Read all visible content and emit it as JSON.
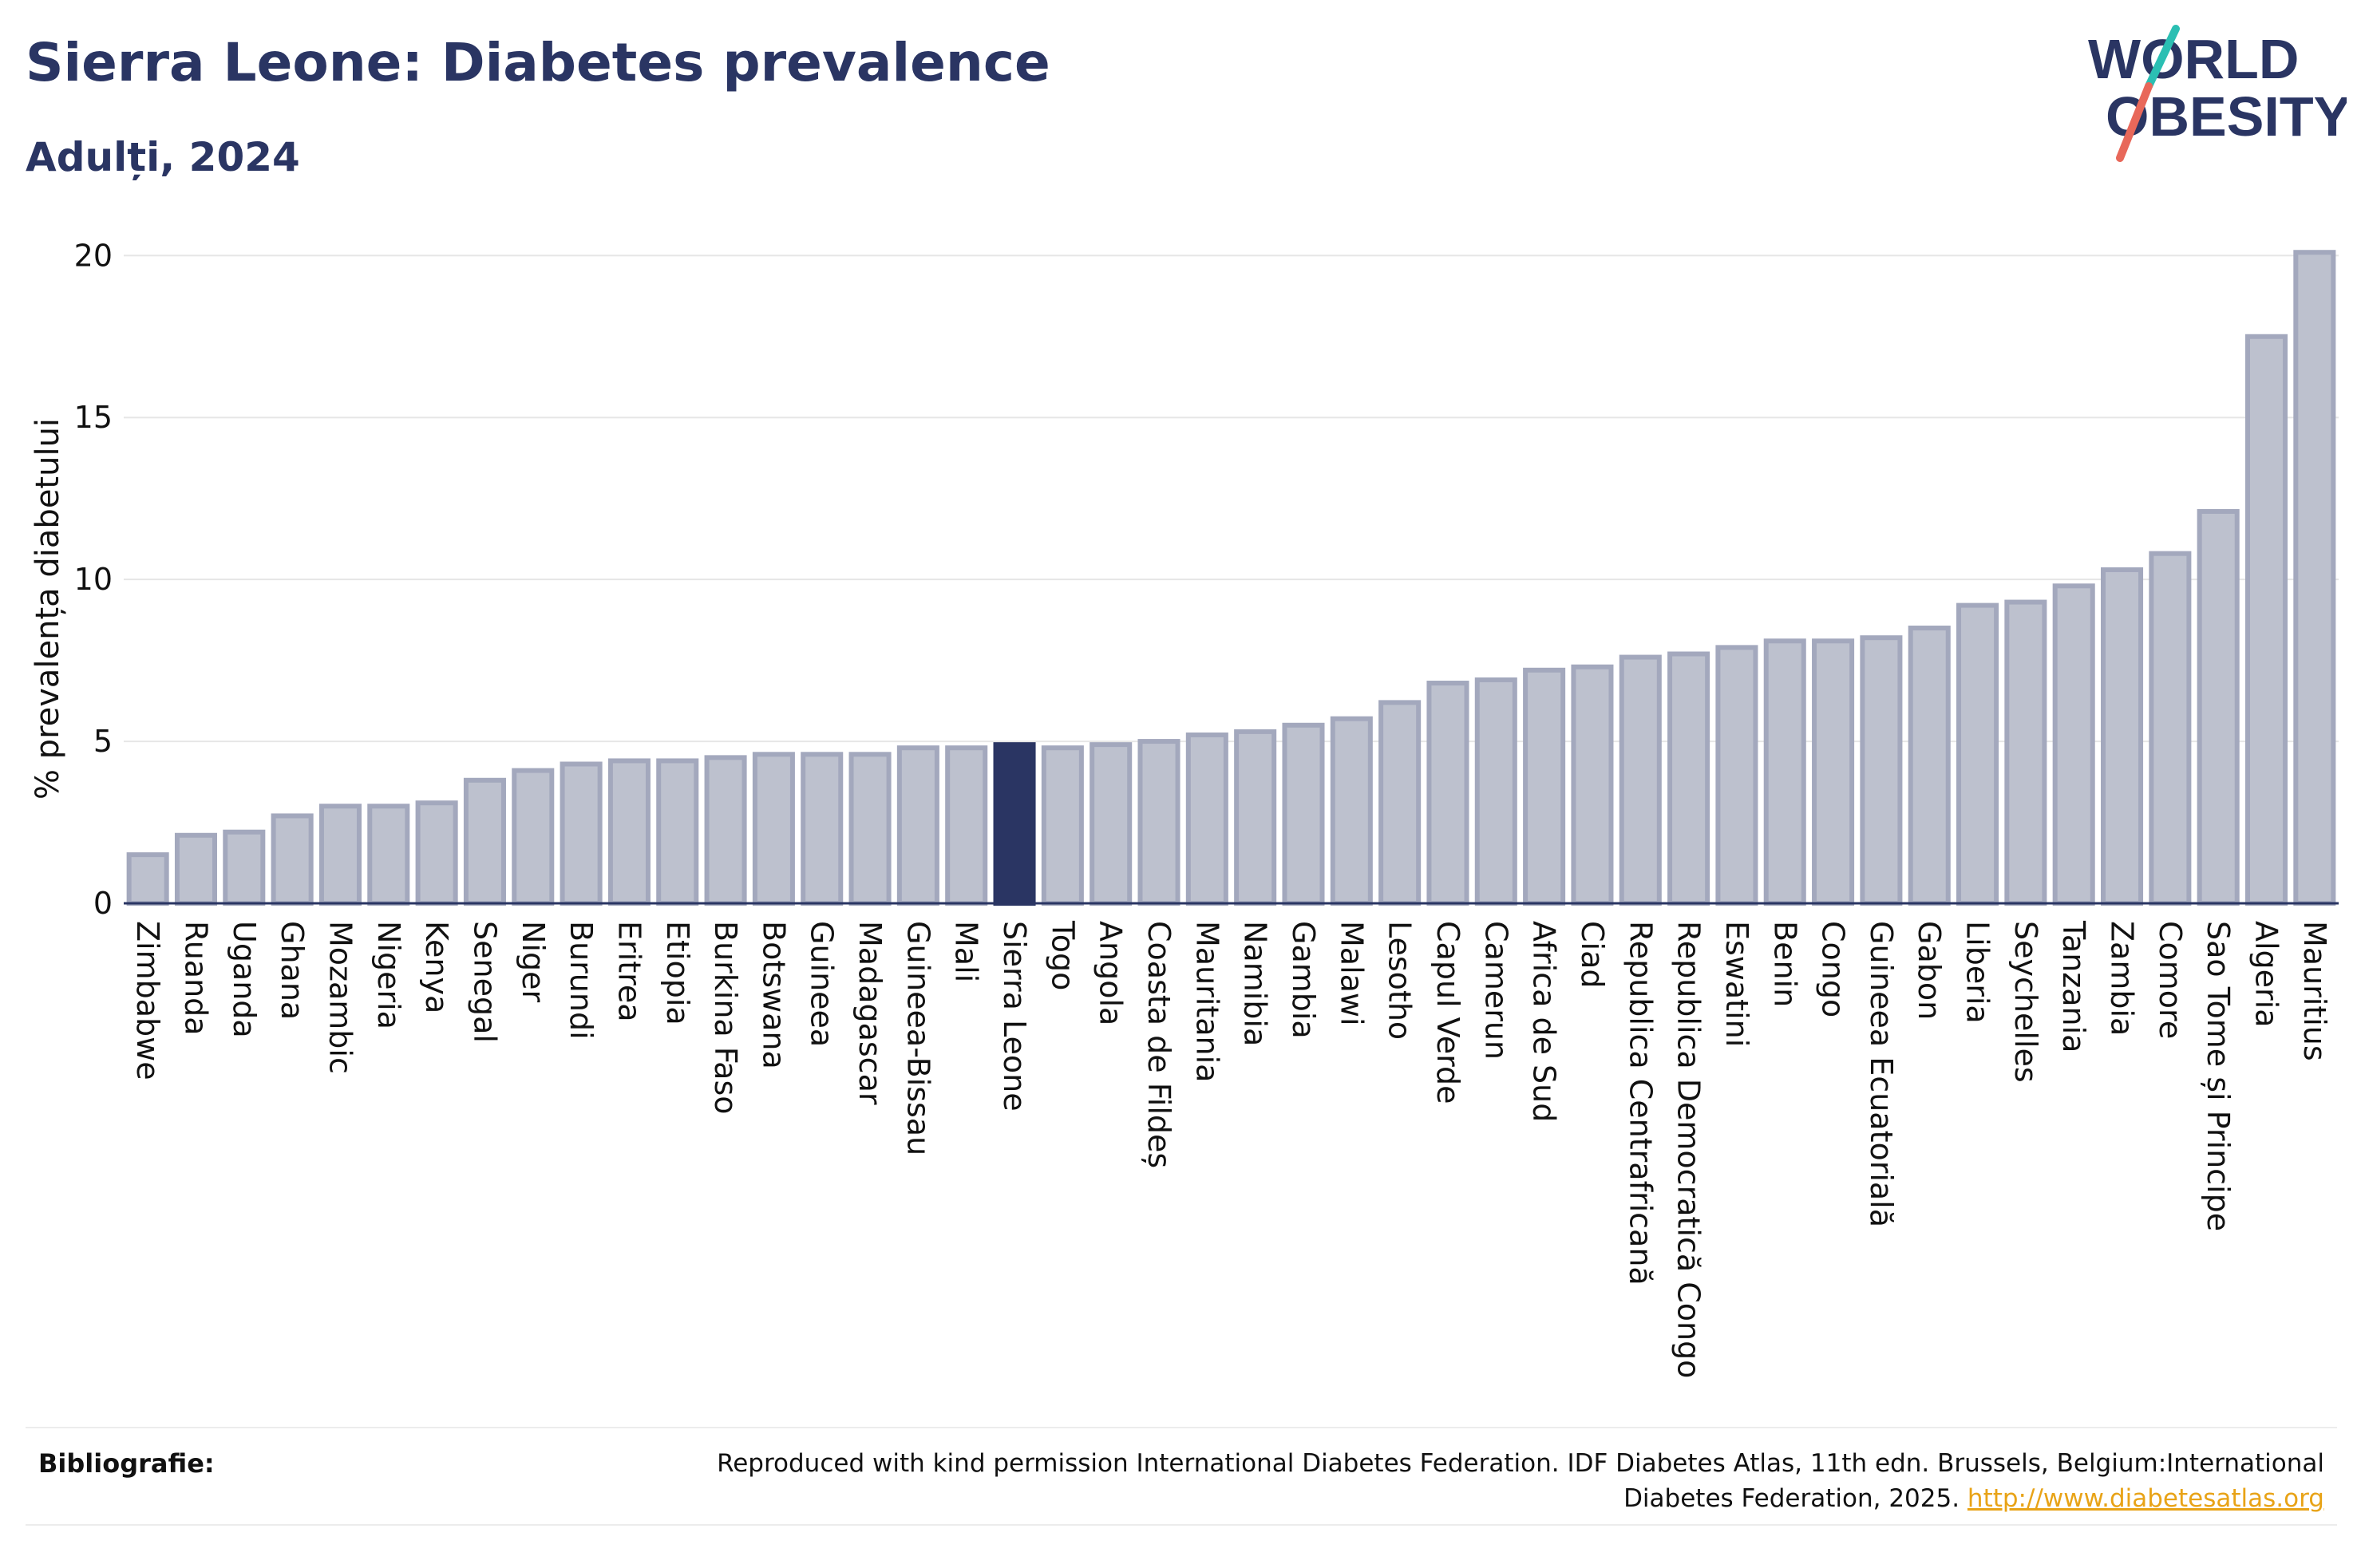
{
  "header": {
    "title": "Sierra Leone: Diabetes prevalence",
    "subtitle": "Adulți, 2024"
  },
  "logo": {
    "line1": "WORLD",
    "line2": "OBESITY",
    "colors": {
      "text": "#2a3563",
      "slash_top": "#2bbfb3",
      "slash_bottom": "#e8685a"
    }
  },
  "chart_data": {
    "type": "bar",
    "title": "Sierra Leone: Diabetes prevalence",
    "subtitle": "Adulți, 2024",
    "ylabel": "% prevalența diabetului",
    "xlabel": "",
    "ylim": [
      0,
      20.5
    ],
    "yticks": [
      0,
      5,
      10,
      15,
      20
    ],
    "grid": true,
    "highlight": "Sierra Leone",
    "colors": {
      "bar": "#bdc1ce",
      "bar_stroke": "#a3a8bd",
      "highlight": "#2a3563",
      "grid": "#e6e6e6",
      "axis": "#2a3563"
    },
    "categories": [
      "Zimbabwe",
      "Ruanda",
      "Uganda",
      "Ghana",
      "Mozambic",
      "Nigeria",
      "Kenya",
      "Senegal",
      "Niger",
      "Burundi",
      "Eritrea",
      "Etiopia",
      "Burkina Faso",
      "Botswana",
      "Guineea",
      "Madagascar",
      "Guineea-Bissau",
      "Mali",
      "Sierra Leone",
      "Togo",
      "Angola",
      "Coasta de Fildeș",
      "Mauritania",
      "Namibia",
      "Gambia",
      "Malawi",
      "Lesotho",
      "Capul Verde",
      "Camerun",
      "Africa de Sud",
      "Ciad",
      "Republica Centrafricană",
      "Republica Democratică Congo",
      "Eswatini",
      "Benin",
      "Congo",
      "Guineea Ecuatorială",
      "Gabon",
      "Liberia",
      "Seychelles",
      "Tanzania",
      "Zambia",
      "Comore",
      "Sao Tome și Principe",
      "Algeria",
      "Mauritius"
    ],
    "values": [
      1.5,
      2.1,
      2.2,
      2.7,
      3.0,
      3.0,
      3.1,
      3.8,
      4.1,
      4.3,
      4.4,
      4.4,
      4.5,
      4.6,
      4.6,
      4.6,
      4.8,
      4.8,
      4.9,
      4.8,
      4.9,
      5.0,
      5.2,
      5.3,
      5.5,
      5.7,
      6.2,
      6.8,
      6.9,
      7.2,
      7.3,
      7.6,
      7.7,
      7.9,
      8.1,
      8.1,
      8.2,
      8.5,
      9.2,
      9.3,
      9.8,
      10.3,
      10.8,
      12.1,
      17.5,
      20.1
    ]
  },
  "footer": {
    "label": "Bibliografie:",
    "text": "Reproduced with kind permission International Diabetes Federation. IDF Diabetes Atlas, 11th edn. Brussels, Belgium:International Diabetes Federation, 2025.",
    "link": "http://www.diabetesatlas.org"
  }
}
